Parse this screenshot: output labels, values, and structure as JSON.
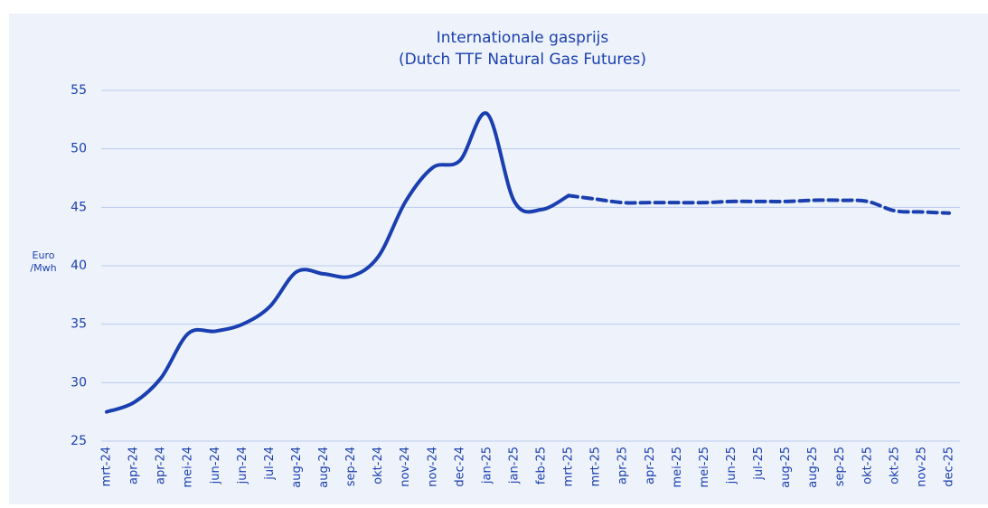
{
  "chart_data": {
    "type": "line",
    "title": [
      "Internationale gasprijs",
      "(Dutch TTF Natural Gas Futures)"
    ],
    "y_label": [
      "Euro",
      "/Mwh"
    ],
    "categories": [
      "mrt-24",
      "apr-24",
      "apr-24",
      "mei-24",
      "jun-24",
      "jun-24",
      "jul-24",
      "aug-24",
      "aug-24",
      "sep-24",
      "okt-24",
      "nov-24",
      "nov-24",
      "dec-24",
      "jan-25",
      "jan-25",
      "feb-25",
      "mrt-25",
      "mrt-25",
      "apr-25",
      "apr-25",
      "mei-25",
      "mei-25",
      "jun-25",
      "jul-25",
      "aug-25",
      "aug-25",
      "sep-25",
      "okt-25",
      "okt-25",
      "nov-25",
      "dec-25"
    ],
    "series": [
      {
        "color": "#1a3fb0",
        "dashed": false,
        "values": [
          27.5,
          28.3,
          30.4,
          34.2,
          34.4,
          35.0,
          36.5,
          39.5,
          39.3,
          39.1,
          40.8,
          45.5,
          48.4,
          49.0,
          53.0,
          45.5,
          44.8,
          46.0,
          null,
          null,
          null,
          null,
          null,
          null,
          null,
          null,
          null,
          null,
          null,
          null,
          null,
          null
        ]
      },
      {
        "color": "#1a3fb0",
        "dashed": true,
        "values": [
          null,
          null,
          null,
          null,
          null,
          null,
          null,
          null,
          null,
          null,
          null,
          null,
          null,
          null,
          null,
          null,
          null,
          46.0,
          45.7,
          45.4,
          45.4,
          45.4,
          45.4,
          45.5,
          45.5,
          45.5,
          45.6,
          45.6,
          45.5,
          44.7,
          44.6,
          44.5
        ]
      }
    ],
    "ylim": [
      25,
      55
    ],
    "yticks": [
      25,
      30,
      35,
      40,
      45,
      50,
      55
    ],
    "grid": true
  }
}
